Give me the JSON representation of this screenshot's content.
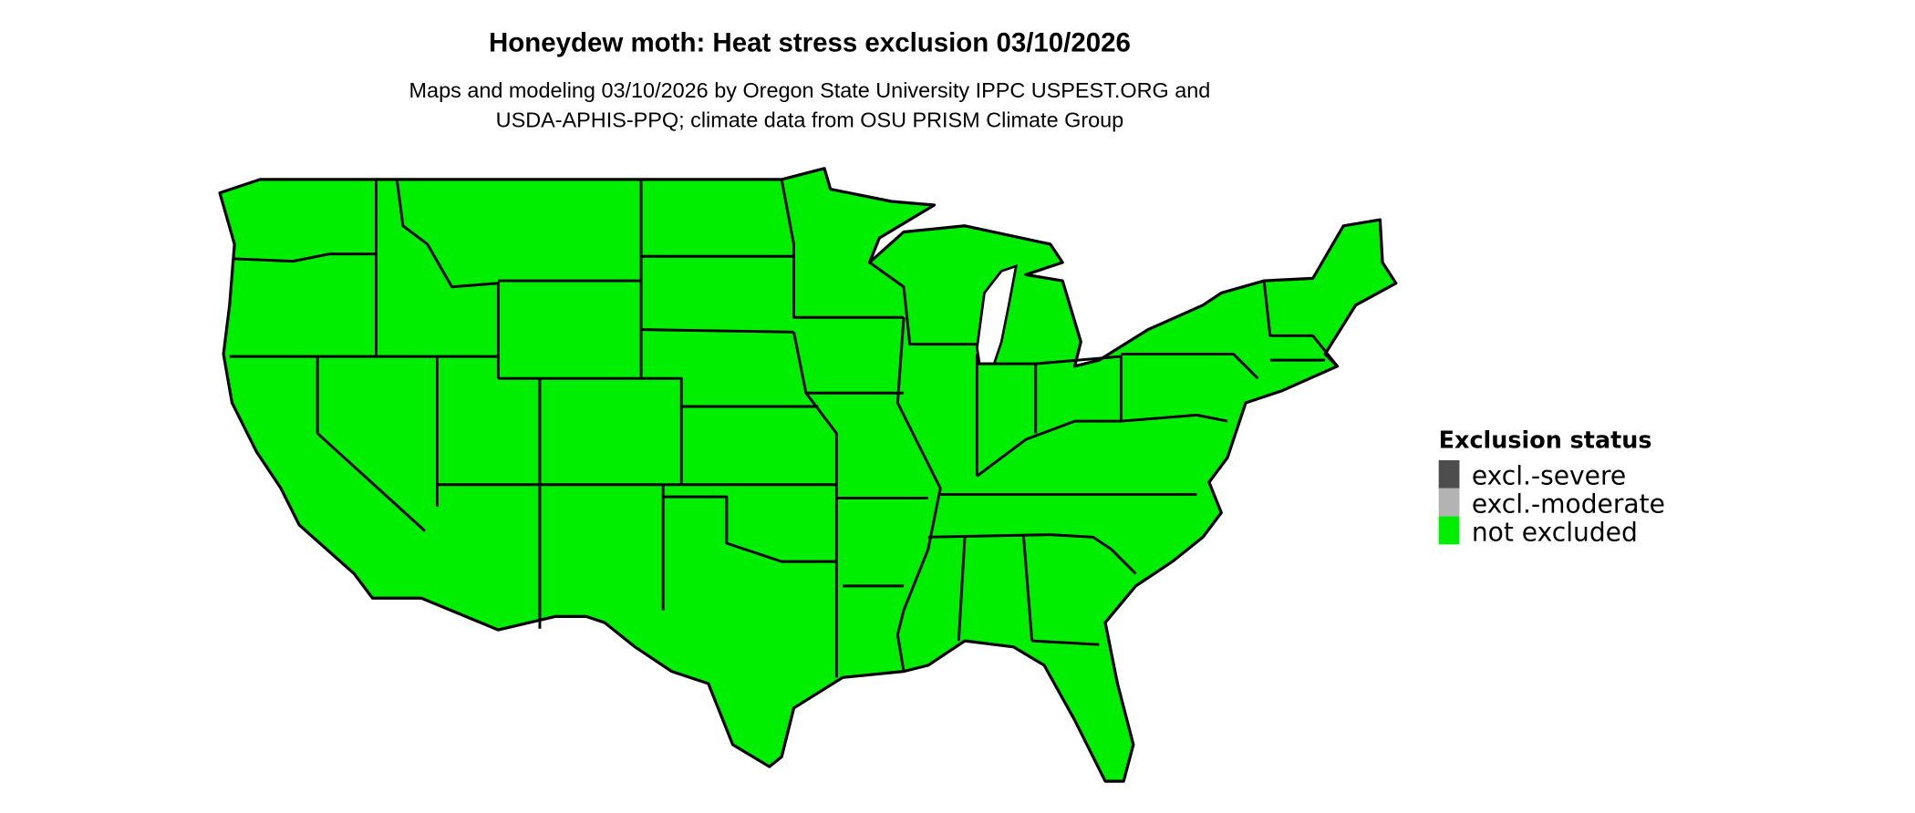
{
  "title": "Honeydew moth: Heat stress exclusion 03/10/2026",
  "subtitle_lines": [
    "Maps and modeling 03/10/2026 by Oregon State University IPPC USPEST.ORG and",
    "USDA-APHIS-PPQ; climate data from OSU PRISM Climate Group"
  ],
  "map": {
    "region": "Contiguous United States",
    "fill_color": "#00EE00",
    "border_color": "#000000"
  },
  "legend": {
    "title": "Exclusion status",
    "items": [
      {
        "label": "excl.-severe",
        "color": "#4D4D4D"
      },
      {
        "label": "excl.-moderate",
        "color": "#B3B3B3"
      },
      {
        "label": "not excluded",
        "color": "#00EE00"
      }
    ]
  }
}
